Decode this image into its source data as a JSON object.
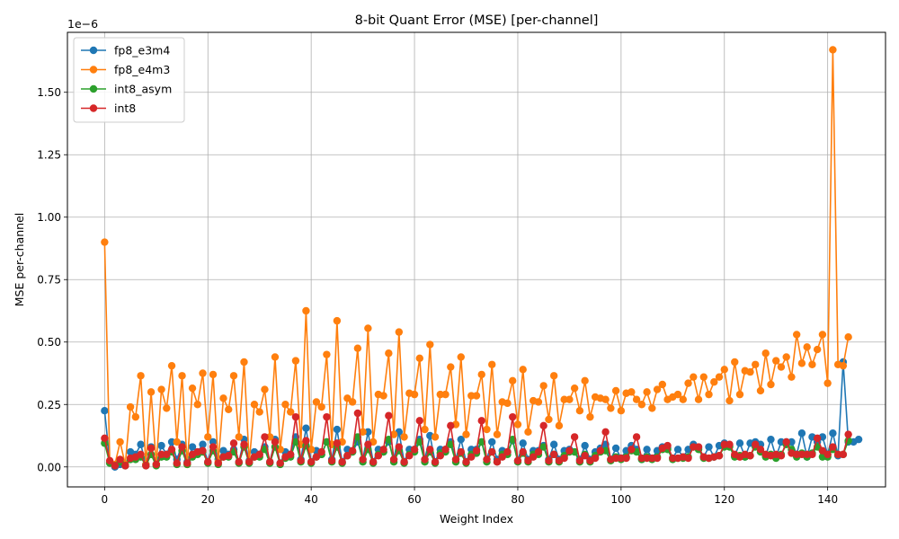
{
  "chart_data": {
    "type": "line",
    "title": "8-bit Quant Error (MSE) [per-channel]",
    "xlabel": "Weight Index",
    "ylabel": "MSE per-channel",
    "offset_text": "1e−6",
    "xlim": [
      -7.2,
      151.2
    ],
    "ylim": [
      -0.08,
      1.74
    ],
    "xticks": [
      0,
      20,
      40,
      60,
      80,
      100,
      120,
      140
    ],
    "yticks": [
      0.0,
      0.25,
      0.5,
      0.75,
      1.0,
      1.25,
      1.5
    ],
    "ytick_labels": [
      "0.00",
      "0.25",
      "0.50",
      "0.75",
      "1.00",
      "1.25",
      "1.50"
    ],
    "grid": true,
    "legend_position": "top-left",
    "series": [
      {
        "name": "fp8_e3m4",
        "color": "#1f77b4",
        "values": [
          0.225,
          0.02,
          0.0,
          0.01,
          0.005,
          0.06,
          0.05,
          0.09,
          0.01,
          0.08,
          0.01,
          0.085,
          0.05,
          0.1,
          0.03,
          0.09,
          0.02,
          0.08,
          0.06,
          0.09,
          0.02,
          0.1,
          0.03,
          0.065,
          0.05,
          0.07,
          0.02,
          0.11,
          0.025,
          0.06,
          0.05,
          0.08,
          0.02,
          0.11,
          0.015,
          0.06,
          0.05,
          0.12,
          0.03,
          0.155,
          0.02,
          0.065,
          0.05,
          0.1,
          0.03,
          0.15,
          0.02,
          0.07,
          0.06,
          0.1,
          0.03,
          0.14,
          0.02,
          0.07,
          0.06,
          0.1,
          0.03,
          0.14,
          0.02,
          0.07,
          0.07,
          0.11,
          0.03,
          0.125,
          0.02,
          0.07,
          0.07,
          0.1,
          0.03,
          0.11,
          0.02,
          0.07,
          0.07,
          0.1,
          0.03,
          0.1,
          0.03,
          0.065,
          0.06,
          0.105,
          0.025,
          0.095,
          0.03,
          0.065,
          0.065,
          0.085,
          0.03,
          0.09,
          0.03,
          0.065,
          0.07,
          0.06,
          0.03,
          0.085,
          0.03,
          0.06,
          0.075,
          0.09,
          0.03,
          0.075,
          0.035,
          0.065,
          0.085,
          0.07,
          0.03,
          0.07,
          0.035,
          0.065,
          0.08,
          0.075,
          0.035,
          0.07,
          0.04,
          0.07,
          0.09,
          0.075,
          0.04,
          0.08,
          0.04,
          0.085,
          0.095,
          0.085,
          0.045,
          0.095,
          0.04,
          0.095,
          0.1,
          0.09,
          0.045,
          0.11,
          0.04,
          0.1,
          0.1,
          0.1,
          0.05,
          0.135,
          0.04,
          0.12,
          0.1,
          0.12,
          0.05,
          0.135,
          0.045,
          0.42,
          0.1,
          0.1,
          0.11
        ]
      },
      {
        "name": "fp8_e4m3",
        "color": "#ff7f0e",
        "values": [
          0.9,
          0.02,
          0.01,
          0.1,
          0.01,
          0.24,
          0.2,
          0.365,
          0.01,
          0.3,
          0.01,
          0.31,
          0.235,
          0.405,
          0.1,
          0.365,
          0.01,
          0.315,
          0.25,
          0.375,
          0.12,
          0.37,
          0.02,
          0.275,
          0.23,
          0.365,
          0.12,
          0.42,
          0.02,
          0.25,
          0.22,
          0.31,
          0.12,
          0.44,
          0.07,
          0.25,
          0.22,
          0.425,
          0.09,
          0.625,
          0.07,
          0.26,
          0.24,
          0.45,
          0.09,
          0.585,
          0.1,
          0.275,
          0.26,
          0.475,
          0.14,
          0.555,
          0.1,
          0.29,
          0.285,
          0.455,
          0.13,
          0.54,
          0.12,
          0.295,
          0.29,
          0.435,
          0.15,
          0.49,
          0.12,
          0.29,
          0.29,
          0.4,
          0.17,
          0.44,
          0.13,
          0.285,
          0.285,
          0.37,
          0.15,
          0.41,
          0.13,
          0.26,
          0.255,
          0.345,
          0.17,
          0.39,
          0.14,
          0.265,
          0.26,
          0.325,
          0.19,
          0.365,
          0.165,
          0.27,
          0.27,
          0.315,
          0.225,
          0.345,
          0.2,
          0.28,
          0.275,
          0.27,
          0.235,
          0.305,
          0.225,
          0.295,
          0.3,
          0.27,
          0.25,
          0.3,
          0.235,
          0.31,
          0.33,
          0.27,
          0.28,
          0.29,
          0.27,
          0.335,
          0.36,
          0.27,
          0.36,
          0.29,
          0.34,
          0.36,
          0.39,
          0.265,
          0.42,
          0.29,
          0.385,
          0.38,
          0.41,
          0.305,
          0.455,
          0.33,
          0.425,
          0.4,
          0.44,
          0.36,
          0.53,
          0.415,
          0.48,
          0.41,
          0.47,
          0.53,
          0.335,
          1.67,
          0.41,
          0.405,
          0.52
        ]
      },
      {
        "name": "int8_asym",
        "color": "#2ca02c",
        "values": [
          0.095,
          0.015,
          0.005,
          0.02,
          0.005,
          0.03,
          0.03,
          0.04,
          0.005,
          0.05,
          0.005,
          0.04,
          0.04,
          0.06,
          0.01,
          0.065,
          0.01,
          0.04,
          0.05,
          0.06,
          0.015,
          0.065,
          0.01,
          0.04,
          0.04,
          0.06,
          0.015,
          0.08,
          0.015,
          0.04,
          0.04,
          0.07,
          0.015,
          0.08,
          0.01,
          0.035,
          0.04,
          0.1,
          0.02,
          0.085,
          0.015,
          0.04,
          0.05,
          0.1,
          0.02,
          0.08,
          0.015,
          0.045,
          0.06,
          0.12,
          0.02,
          0.07,
          0.015,
          0.05,
          0.06,
          0.11,
          0.02,
          0.065,
          0.015,
          0.05,
          0.06,
          0.1,
          0.02,
          0.06,
          0.015,
          0.055,
          0.06,
          0.09,
          0.02,
          0.055,
          0.015,
          0.05,
          0.055,
          0.1,
          0.02,
          0.06,
          0.02,
          0.05,
          0.05,
          0.11,
          0.02,
          0.055,
          0.02,
          0.05,
          0.05,
          0.08,
          0.02,
          0.05,
          0.02,
          0.045,
          0.06,
          0.06,
          0.02,
          0.05,
          0.02,
          0.045,
          0.06,
          0.065,
          0.025,
          0.04,
          0.03,
          0.04,
          0.065,
          0.06,
          0.03,
          0.04,
          0.03,
          0.04,
          0.07,
          0.07,
          0.03,
          0.035,
          0.035,
          0.04,
          0.08,
          0.07,
          0.035,
          0.035,
          0.04,
          0.045,
          0.08,
          0.08,
          0.04,
          0.045,
          0.04,
          0.045,
          0.08,
          0.06,
          0.04,
          0.05,
          0.035,
          0.05,
          0.09,
          0.07,
          0.04,
          0.055,
          0.04,
          0.055,
          0.08,
          0.04,
          0.04,
          0.07,
          0.05,
          0.05,
          0.105
        ]
      },
      {
        "name": "int8",
        "color": "#d62728",
        "values": [
          0.115,
          0.025,
          0.005,
          0.03,
          0.005,
          0.035,
          0.04,
          0.05,
          0.005,
          0.075,
          0.01,
          0.05,
          0.05,
          0.07,
          0.015,
          0.08,
          0.015,
          0.05,
          0.06,
          0.065,
          0.02,
          0.08,
          0.015,
          0.04,
          0.045,
          0.095,
          0.02,
          0.09,
          0.02,
          0.04,
          0.05,
          0.12,
          0.02,
          0.1,
          0.015,
          0.04,
          0.05,
          0.2,
          0.025,
          0.105,
          0.02,
          0.04,
          0.06,
          0.2,
          0.025,
          0.095,
          0.02,
          0.045,
          0.065,
          0.215,
          0.03,
          0.09,
          0.02,
          0.045,
          0.07,
          0.205,
          0.03,
          0.08,
          0.02,
          0.045,
          0.07,
          0.185,
          0.03,
          0.07,
          0.02,
          0.045,
          0.07,
          0.165,
          0.03,
          0.06,
          0.02,
          0.04,
          0.065,
          0.185,
          0.03,
          0.06,
          0.02,
          0.04,
          0.06,
          0.2,
          0.025,
          0.06,
          0.025,
          0.04,
          0.06,
          0.165,
          0.025,
          0.05,
          0.025,
          0.035,
          0.065,
          0.12,
          0.025,
          0.045,
          0.025,
          0.035,
          0.065,
          0.14,
          0.03,
          0.035,
          0.035,
          0.035,
          0.07,
          0.12,
          0.035,
          0.035,
          0.035,
          0.035,
          0.075,
          0.085,
          0.035,
          0.035,
          0.04,
          0.035,
          0.08,
          0.08,
          0.04,
          0.035,
          0.04,
          0.045,
          0.09,
          0.09,
          0.05,
          0.04,
          0.05,
          0.045,
          0.09,
          0.07,
          0.05,
          0.045,
          0.05,
          0.045,
          0.1,
          0.055,
          0.05,
          0.05,
          0.05,
          0.05,
          0.115,
          0.065,
          0.05,
          0.08,
          0.05,
          0.05,
          0.13
        ]
      }
    ]
  }
}
